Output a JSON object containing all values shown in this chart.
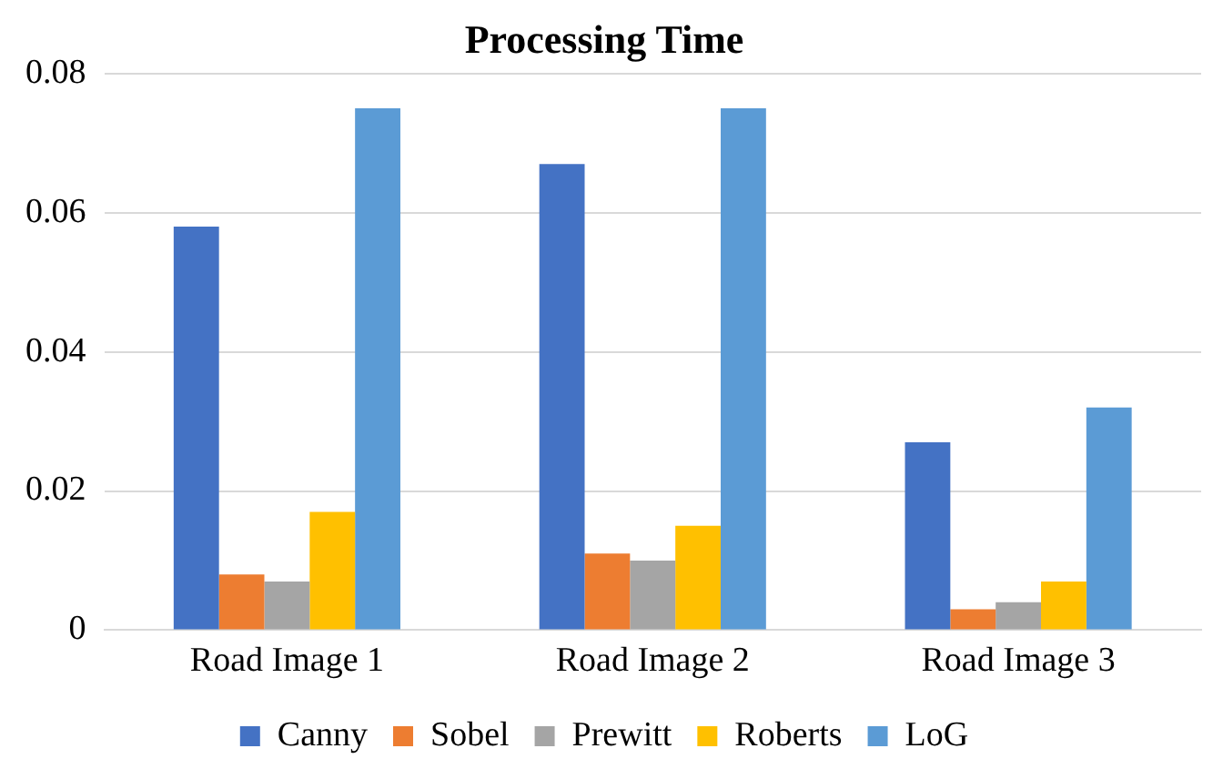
{
  "chart_data": {
    "type": "bar",
    "title": "Processing Time",
    "categories": [
      "Road Image 1",
      "Road Image 2",
      "Road Image 3"
    ],
    "series": [
      {
        "name": "Canny",
        "color": "#4472c4",
        "values": [
          0.058,
          0.067,
          0.027
        ]
      },
      {
        "name": "Sobel",
        "color": "#ed7d31",
        "values": [
          0.008,
          0.011,
          0.003
        ]
      },
      {
        "name": "Prewitt",
        "color": "#a5a5a5",
        "values": [
          0.007,
          0.01,
          0.004
        ]
      },
      {
        "name": "Roberts",
        "color": "#ffc000",
        "values": [
          0.017,
          0.015,
          0.007
        ]
      },
      {
        "name": "LoG",
        "color": "#5b9bd5",
        "values": [
          0.075,
          0.075,
          0.032
        ]
      }
    ],
    "ylim": [
      0,
      0.08
    ],
    "yticks": [
      0,
      0.02,
      0.04,
      0.06,
      0.08
    ],
    "grid": "y",
    "legend": "bottom"
  }
}
